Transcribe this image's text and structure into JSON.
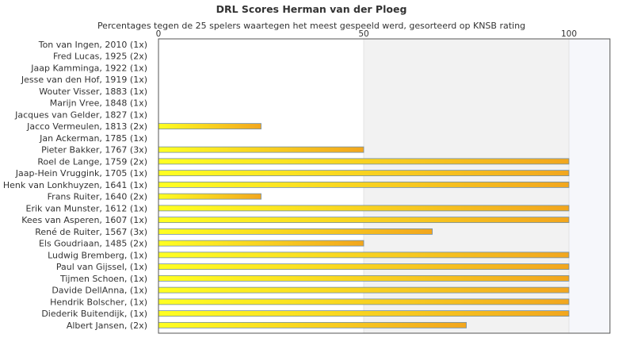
{
  "chart_data": {
    "type": "bar",
    "orientation": "horizontal",
    "title": "DRL Scores Herman van der Ploeg",
    "subtitle": "Percentages tegen de 25 spelers waartegen het meest gespeeld werd, gesorteerd op KNSB rating",
    "xlim": [
      0,
      110
    ],
    "xticks": [
      0,
      50,
      100
    ],
    "grid": true,
    "categories": [
      "Ton van Ingen, 2010 (1x)",
      "Fred Lucas, 1925 (2x)",
      "Jaap Kamminga, 1922 (1x)",
      "Jesse van den Hof, 1919 (1x)",
      "Wouter Visser, 1883 (1x)",
      "Marijn Vree, 1848 (1x)",
      "Jacques van Gelder, 1827 (1x)",
      "Jacco Vermeulen, 1813 (2x)",
      "Jan Ackerman, 1785 (1x)",
      "Pieter Bakker, 1767 (3x)",
      "Roel de Lange, 1759 (2x)",
      "Jaap-Hein Vruggink, 1705 (1x)",
      "Henk van Lonkhuyzen, 1641 (1x)",
      "Frans Ruiter, 1640 (2x)",
      "Erik van Munster, 1612 (1x)",
      "Kees van Asperen, 1607 (1x)",
      "René de Ruiter, 1567 (3x)",
      "Els Goudriaan, 1485 (2x)",
      "Ludwig Bremberg,  (1x)",
      "Paul van Gijssel,  (1x)",
      "Tijmen Schoen,  (1x)",
      "Davide DellAnna,  (1x)",
      "Hendrik Bolscher,  (1x)",
      "Diederik Buitendijk,  (1x)",
      "Albert Jansen,  (2x)"
    ],
    "values": [
      0,
      0,
      0,
      0,
      0,
      0,
      0,
      25,
      0,
      50,
      100,
      100,
      100,
      25,
      100,
      100,
      66.7,
      50,
      100,
      100,
      100,
      100,
      100,
      100,
      75
    ],
    "colors": {
      "bar_start": "#ffff22",
      "bar_end": "#f2a61e",
      "bar_stroke": "#6f8fa8",
      "band_light": "#ffffff",
      "band_dark": "#f2f2f2",
      "band_last": "#f6f7fb",
      "axis": "#555555"
    }
  }
}
